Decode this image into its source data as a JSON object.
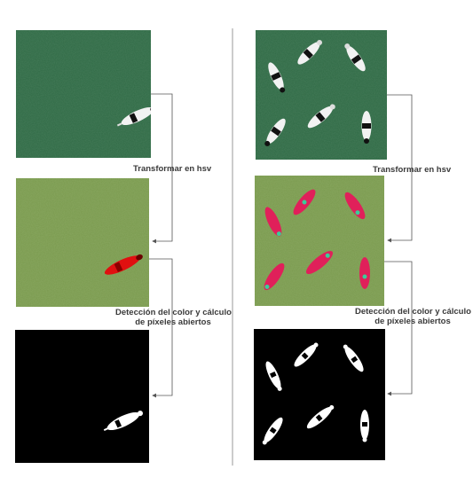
{
  "labels": {
    "hsv": "Transformar en hsv",
    "detection_line1": "Detección del color y cálculo",
    "detection_line2": "de píxeles abiertos"
  },
  "colors": {
    "original_bg": "#2f6a45",
    "hsv_bg": "#7a9a4e",
    "mask_bg": "#000000",
    "cow_white": "#f2f2f2",
    "cow_black": "#111111",
    "hsv_cow_left": "#e01010",
    "hsv_cow_right": "#e0205a",
    "hsv_cow_spot": "#3acd9a",
    "connector": "#555555",
    "divider": "#999999"
  }
}
